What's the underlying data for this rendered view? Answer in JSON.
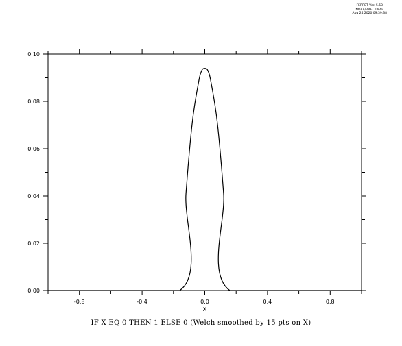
{
  "header": {
    "line1": "FERRET Ver. 5.53",
    "line2": "NOAA/PMEL TMAP",
    "line3": "Aug 24 2020 09:39:38"
  },
  "caption": "IF X EQ 0 THEN 1 ELSE 0 (Welch smoothed by 15 pts on X)",
  "chart_data": {
    "type": "line",
    "title": "IF X EQ 0 THEN 1 ELSE 0 (Welch smoothed by 15 pts on X)",
    "xlabel": "X",
    "ylabel": "",
    "xlim": [
      -1.0,
      1.0
    ],
    "ylim": [
      0.0,
      0.1
    ],
    "xticks": [
      -0.8,
      -0.4,
      0.0,
      0.4,
      0.8
    ],
    "xtick_labels": [
      "-0.8",
      "-0.4",
      "0.0",
      "0.4",
      "0.8"
    ],
    "yticks": [
      0.0,
      0.02,
      0.04,
      0.06,
      0.08,
      0.1
    ],
    "ytick_labels": [
      "0.00",
      "0.02",
      "0.04",
      "0.06",
      "0.08",
      "0.10"
    ],
    "grid": false,
    "legend": false,
    "series": [
      {
        "color": "#000000",
        "x": [
          -1.0,
          -0.16,
          -0.12,
          -0.08,
          -0.04,
          -0.02,
          0.0,
          0.02,
          0.04,
          0.08,
          0.12,
          0.16,
          1.0
        ],
        "y": [
          0.0,
          0.0,
          0.041,
          0.071,
          0.088,
          0.093,
          0.094,
          0.093,
          0.088,
          0.071,
          0.041,
          0.0,
          0.0
        ]
      }
    ]
  }
}
